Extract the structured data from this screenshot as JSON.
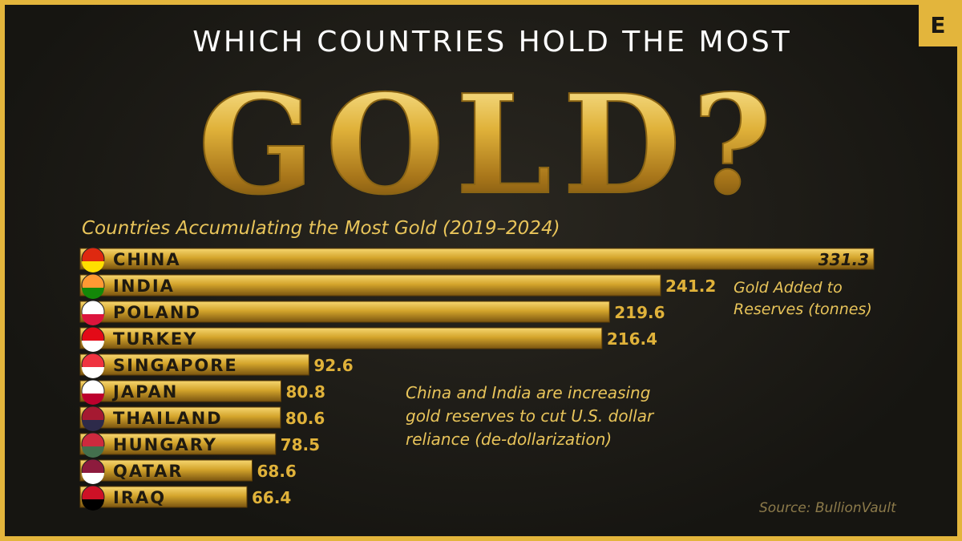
{
  "logo": "E",
  "chart_data": {
    "type": "bar",
    "orientation": "horizontal",
    "title": "WHICH COUNTRIES HOLD THE MOST",
    "headline": "GOLD?",
    "subtitle": "Countries Accumulating the Most Gold (2019–2024)",
    "categories": [
      "CHINA",
      "INDIA",
      "POLAND",
      "TURKEY",
      "SINGAPORE",
      "JAPAN",
      "THAILAND",
      "HUNGARY",
      "QATAR",
      "IRAQ"
    ],
    "values": [
      331.3,
      241.2,
      219.6,
      216.4,
      92.6,
      80.8,
      80.6,
      78.5,
      68.6,
      66.4
    ],
    "color": "#d4a52c",
    "value_axis_label": "Gold Added to Reserves (tonnes)",
    "annotation": "China and India are increasing gold reserves to cut U.S. dollar reliance (de-dollarization)",
    "source": "Source: BullionVault"
  }
}
